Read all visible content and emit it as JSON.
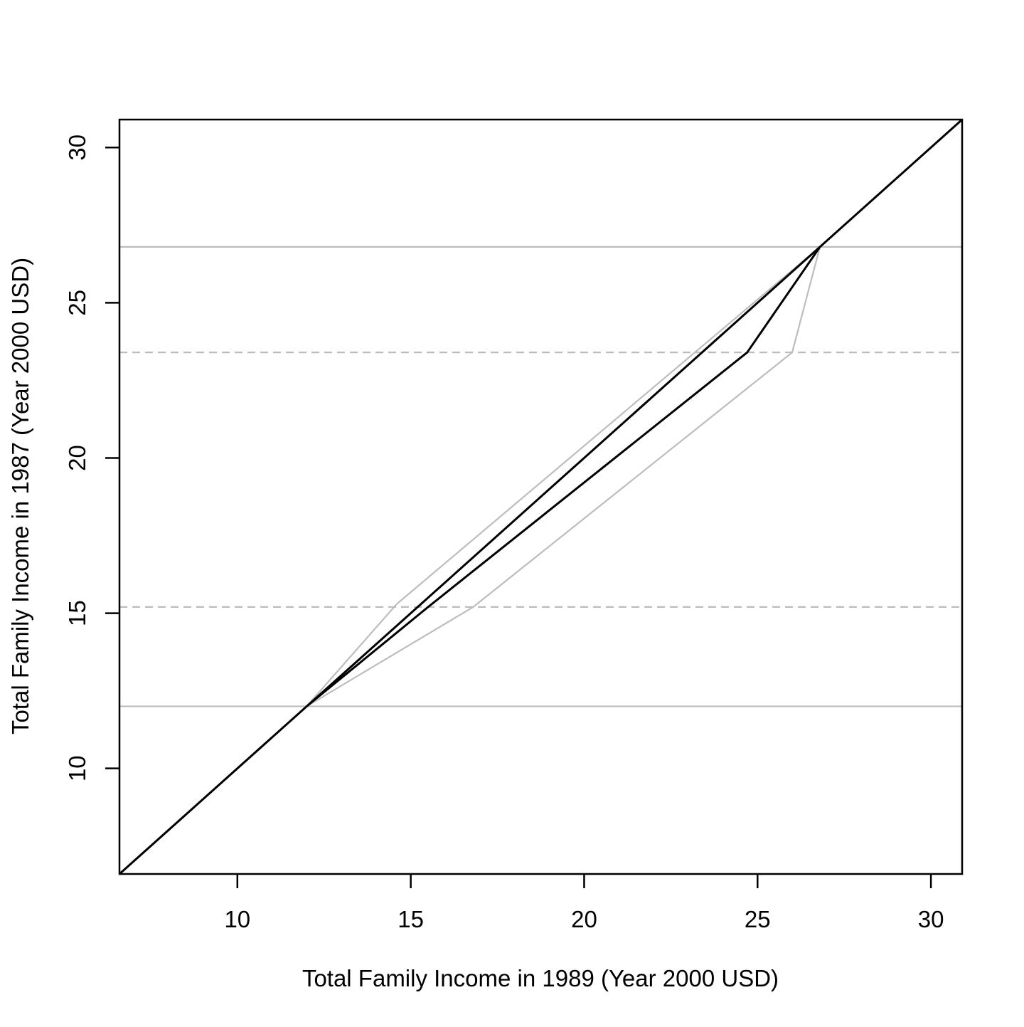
{
  "chart_data": {
    "type": "line",
    "title": "",
    "xlabel": "Total Family Income in 1989 (Year 2000 USD)",
    "ylabel": "Total Family Income in 1987 (Year 2000 USD)",
    "xlim": [
      6.6,
      30.9
    ],
    "ylim": [
      6.6,
      30.9
    ],
    "x_ticks": [
      10,
      15,
      20,
      25,
      30
    ],
    "y_ticks": [
      10,
      15,
      20,
      25,
      30
    ],
    "grid": false,
    "legend": "none",
    "colors": {
      "black": "#000000",
      "gray": "#bdbdbd",
      "axis": "#000000"
    },
    "hlines": [
      {
        "y": 26.8,
        "style": "solid",
        "color": "gray"
      },
      {
        "y": 23.4,
        "style": "dashed",
        "color": "gray"
      },
      {
        "y": 15.2,
        "style": "dashed",
        "color": "gray"
      },
      {
        "y": 12.0,
        "style": "solid",
        "color": "gray"
      }
    ],
    "series": [
      {
        "color": "black",
        "style": "solid",
        "x": [
          6.6,
          30.9
        ],
        "y": [
          6.6,
          30.9
        ]
      },
      {
        "color": "black",
        "style": "solid",
        "x": [
          12.0,
          15.5,
          24.7,
          26.8
        ],
        "y": [
          12.0,
          15.2,
          23.4,
          26.8
        ]
      },
      {
        "color": "gray",
        "style": "solid",
        "x": [
          12.0,
          16.8,
          26.0,
          26.8
        ],
        "y": [
          12.0,
          15.2,
          23.4,
          26.8
        ]
      },
      {
        "color": "gray",
        "style": "solid",
        "x": [
          12.0,
          14.6,
          26.8
        ],
        "y": [
          12.0,
          15.3,
          26.8
        ]
      }
    ]
  }
}
